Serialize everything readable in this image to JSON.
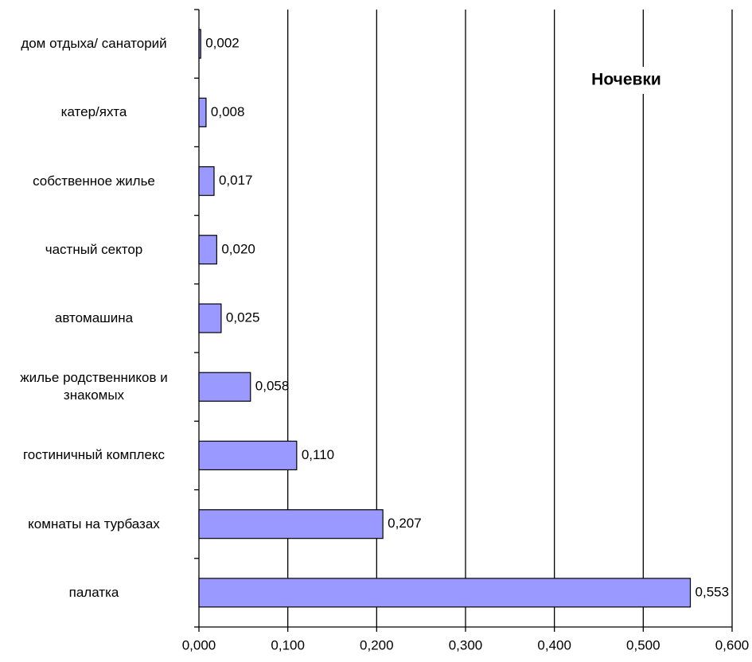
{
  "chart_data": {
    "type": "bar",
    "orientation": "horizontal",
    "title": "Ночевки",
    "categories": [
      "дом отдыха/ санаторий",
      "катер/яхта",
      "собственное жилье",
      "частный сектор",
      "автомашина",
      "жилье родственников и знакомых",
      "гостиничный комплекс",
      "комнаты на турбазах",
      "палатка"
    ],
    "values": [
      0.002,
      0.008,
      0.017,
      0.02,
      0.025,
      0.058,
      0.11,
      0.207,
      0.553
    ],
    "value_labels": [
      "0,002",
      "0,008",
      "0,017",
      "0,020",
      "0,025",
      "0,058",
      "0,110",
      "0,207",
      "0,553"
    ],
    "color": "#9999ff",
    "xlim": [
      0,
      0.6
    ],
    "xticks": [
      {
        "value": 0,
        "label": "0,000"
      },
      {
        "value": 0.1,
        "label": "0,100"
      },
      {
        "value": 0.2,
        "label": "0,200"
      },
      {
        "value": 0.3,
        "label": "0,300"
      },
      {
        "value": 0.4,
        "label": "0,400"
      },
      {
        "value": 0.5,
        "label": "0,500"
      },
      {
        "value": 0.6,
        "label": "0,600"
      }
    ],
    "grid": true
  }
}
